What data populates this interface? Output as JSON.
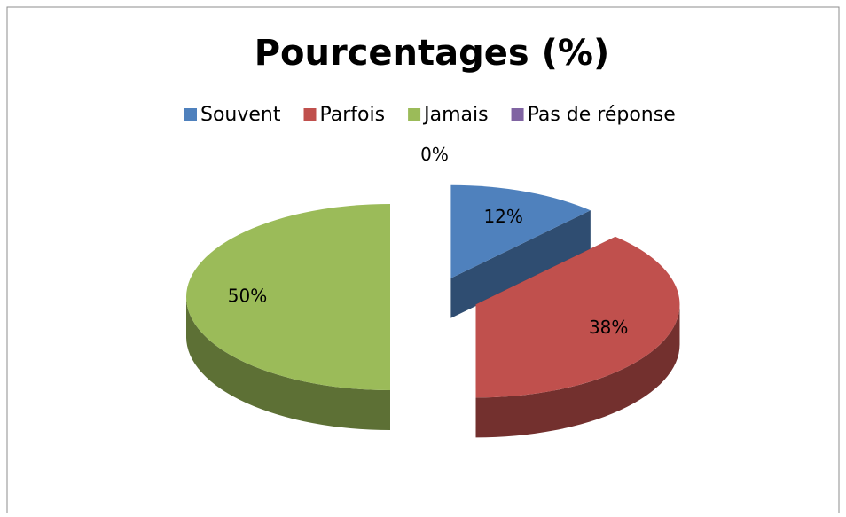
{
  "chart_data": {
    "type": "pie",
    "title": "Pourcentages (%)",
    "categories": [
      "Souvent",
      "Parfois",
      "Jamais",
      "Pas de réponse"
    ],
    "values": [
      12,
      38,
      50,
      0
    ],
    "value_labels": [
      "12%",
      "38%",
      "50%",
      "0%"
    ],
    "colors": [
      "#4f81bd",
      "#c0504d",
      "#9bbb59",
      "#8064a2"
    ],
    "legend": "top",
    "exploded": true,
    "three_d": true
  }
}
